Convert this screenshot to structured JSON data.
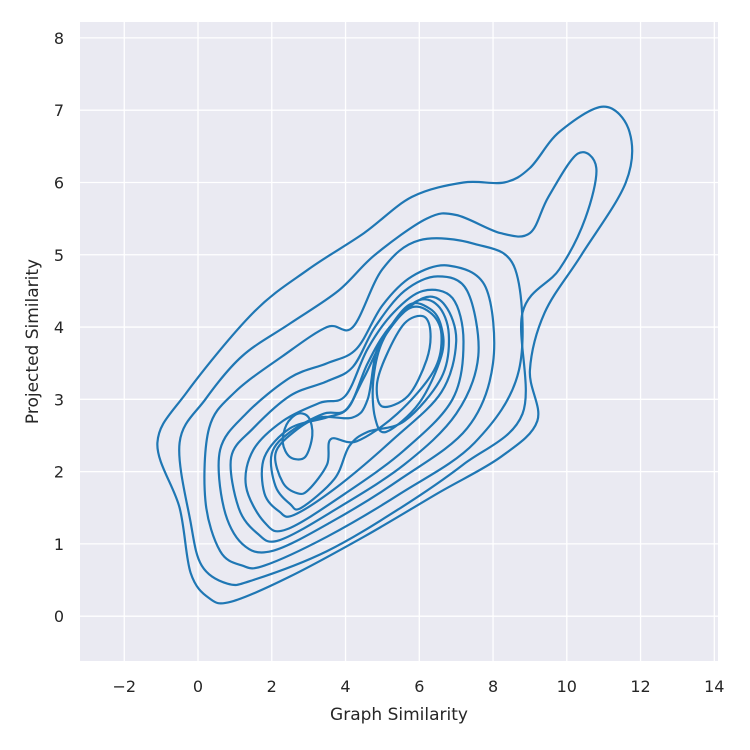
{
  "chart_data": {
    "type": "kde-contour",
    "xlabel": "Graph Similarity",
    "ylabel": "Projected Similarity",
    "xlim": [
      -3.2,
      14.1
    ],
    "ylim": [
      -0.62,
      8.22
    ],
    "xticks": [
      -2,
      0,
      2,
      4,
      6,
      8,
      10,
      12,
      14
    ],
    "xtick_labels": [
      "−2",
      "0",
      "2",
      "4",
      "6",
      "8",
      "10",
      "12",
      "14"
    ],
    "yticks": [
      0,
      1,
      2,
      3,
      4,
      5,
      6,
      7,
      8
    ],
    "ytick_labels": [
      "0",
      "1",
      "2",
      "3",
      "4",
      "5",
      "6",
      "7",
      "8"
    ],
    "grid": true,
    "background": "#eaeaf2",
    "grid_color": "#ffffff",
    "line_color": "#1f77b4",
    "contours": [
      {
        "level": 1,
        "points": [
          [
            0.9,
            0.2
          ],
          [
            2.5,
            0.55
          ],
          [
            4.5,
            1.1
          ],
          [
            6.5,
            1.7
          ],
          [
            8.2,
            2.2
          ],
          [
            9.2,
            2.7
          ],
          [
            9.0,
            3.4
          ],
          [
            9.4,
            4.2
          ],
          [
            10.4,
            5.0
          ],
          [
            11.6,
            6.0
          ],
          [
            11.7,
            6.7
          ],
          [
            11.0,
            7.05
          ],
          [
            9.8,
            6.7
          ],
          [
            9.0,
            6.2
          ],
          [
            8.3,
            6.0
          ],
          [
            7.2,
            6.0
          ],
          [
            5.8,
            5.8
          ],
          [
            4.5,
            5.3
          ],
          [
            3.0,
            4.8
          ],
          [
            1.5,
            4.2
          ],
          [
            -0.3,
            3.1
          ],
          [
            -1.1,
            2.4
          ],
          [
            -0.5,
            1.5
          ],
          [
            -0.2,
            0.6
          ],
          [
            0.3,
            0.25
          ]
        ]
      },
      {
        "level": 2,
        "points": [
          [
            1.5,
            0.5
          ],
          [
            3.5,
            0.9
          ],
          [
            5.5,
            1.5
          ],
          [
            7.2,
            2.1
          ],
          [
            8.8,
            2.8
          ],
          [
            8.8,
            4.2
          ],
          [
            9.8,
            4.8
          ],
          [
            10.5,
            5.5
          ],
          [
            10.8,
            6.2
          ],
          [
            10.3,
            6.4
          ],
          [
            9.5,
            5.8
          ],
          [
            9.0,
            5.3
          ],
          [
            8.2,
            5.3
          ],
          [
            7.0,
            5.55
          ],
          [
            6.2,
            5.5
          ],
          [
            4.8,
            5.0
          ],
          [
            3.8,
            4.5
          ],
          [
            2.5,
            4.05
          ],
          [
            1.2,
            3.6
          ],
          [
            0.2,
            3.0
          ],
          [
            -0.5,
            2.4
          ],
          [
            -0.2,
            1.3
          ],
          [
            0.1,
            0.7
          ],
          [
            0.8,
            0.45
          ]
        ]
      },
      {
        "level": 3,
        "points": [
          [
            1.8,
            0.7
          ],
          [
            3.5,
            1.1
          ],
          [
            5.5,
            1.7
          ],
          [
            7.5,
            2.4
          ],
          [
            8.7,
            3.4
          ],
          [
            8.6,
            4.8
          ],
          [
            7.5,
            5.15
          ],
          [
            6.0,
            5.2
          ],
          [
            5.0,
            4.8
          ],
          [
            4.2,
            4.0
          ],
          [
            3.5,
            4.0
          ],
          [
            2.3,
            3.6
          ],
          [
            1.0,
            3.1
          ],
          [
            0.3,
            2.6
          ],
          [
            0.2,
            1.6
          ],
          [
            0.6,
            0.9
          ],
          [
            1.2,
            0.7
          ]
        ]
      },
      {
        "level": 4,
        "points": [
          [
            2.0,
            0.9
          ],
          [
            3.6,
            1.3
          ],
          [
            5.5,
            1.9
          ],
          [
            7.3,
            2.6
          ],
          [
            8.0,
            3.5
          ],
          [
            7.8,
            4.55
          ],
          [
            6.8,
            4.85
          ],
          [
            5.8,
            4.7
          ],
          [
            5.0,
            4.3
          ],
          [
            4.3,
            3.7
          ],
          [
            3.5,
            3.5
          ],
          [
            2.5,
            3.3
          ],
          [
            1.3,
            2.8
          ],
          [
            0.6,
            2.3
          ],
          [
            0.7,
            1.5
          ],
          [
            1.2,
            1.0
          ]
        ]
      },
      {
        "level": 5,
        "points": [
          [
            2.2,
            1.05
          ],
          [
            3.8,
            1.5
          ],
          [
            5.6,
            2.1
          ],
          [
            7.0,
            2.8
          ],
          [
            7.6,
            3.6
          ],
          [
            7.3,
            4.5
          ],
          [
            6.5,
            4.7
          ],
          [
            5.6,
            4.5
          ],
          [
            4.8,
            4.0
          ],
          [
            4.2,
            3.45
          ],
          [
            3.5,
            3.25
          ],
          [
            2.5,
            3.05
          ],
          [
            1.5,
            2.6
          ],
          [
            0.9,
            2.2
          ],
          [
            1.1,
            1.5
          ],
          [
            1.6,
            1.15
          ]
        ]
      },
      {
        "level": 6,
        "points": [
          [
            2.4,
            1.2
          ],
          [
            4.0,
            1.7
          ],
          [
            5.6,
            2.3
          ],
          [
            6.9,
            3.0
          ],
          [
            7.2,
            3.8
          ],
          [
            6.9,
            4.4
          ],
          [
            6.1,
            4.5
          ],
          [
            5.3,
            4.2
          ],
          [
            4.6,
            3.7
          ],
          [
            4.0,
            3.05
          ],
          [
            3.3,
            2.95
          ],
          [
            2.3,
            2.7
          ],
          [
            1.5,
            2.3
          ],
          [
            1.3,
            1.8
          ],
          [
            1.8,
            1.3
          ]
        ]
      },
      {
        "level": 7,
        "points": [
          [
            2.6,
            1.4
          ],
          [
            3.8,
            1.8
          ],
          [
            5.3,
            2.45
          ],
          [
            6.6,
            3.1
          ],
          [
            7.0,
            3.8
          ],
          [
            6.7,
            4.3
          ],
          [
            6.1,
            4.4
          ],
          [
            5.2,
            4.0
          ],
          [
            4.6,
            3.5
          ],
          [
            4.1,
            2.9
          ],
          [
            3.5,
            2.75
          ],
          [
            2.5,
            2.6
          ],
          [
            1.8,
            2.2
          ],
          [
            1.8,
            1.7
          ],
          [
            2.2,
            1.45
          ]
        ]
      },
      {
        "level": 8,
        "points": [
          [
            2.8,
            1.5
          ],
          [
            3.7,
            1.9
          ],
          [
            4.1,
            2.35
          ],
          [
            4.6,
            2.55
          ],
          [
            5.6,
            2.7
          ],
          [
            6.6,
            3.3
          ],
          [
            6.8,
            3.9
          ],
          [
            6.5,
            4.3
          ],
          [
            5.9,
            4.35
          ],
          [
            5.1,
            3.9
          ],
          [
            4.5,
            3.3
          ],
          [
            4.0,
            2.85
          ],
          [
            3.4,
            2.8
          ],
          [
            2.5,
            2.55
          ],
          [
            2.0,
            2.25
          ],
          [
            2.1,
            1.8
          ],
          [
            2.5,
            1.55
          ]
        ]
      },
      {
        "level": 9,
        "points": [
          [
            3.0,
            1.75
          ],
          [
            3.5,
            2.1
          ],
          [
            3.6,
            2.45
          ],
          [
            4.3,
            2.42
          ],
          [
            5.4,
            2.8
          ],
          [
            6.4,
            3.4
          ],
          [
            6.6,
            3.9
          ],
          [
            6.3,
            4.2
          ],
          [
            5.7,
            4.25
          ],
          [
            4.9,
            3.75
          ],
          [
            4.6,
            3.0
          ],
          [
            4.2,
            2.75
          ],
          [
            3.3,
            2.75
          ],
          [
            2.6,
            2.55
          ],
          [
            2.1,
            2.25
          ],
          [
            2.3,
            1.85
          ],
          [
            2.7,
            1.7
          ]
        ]
      },
      {
        "level": 10,
        "points": [
          [
            5.1,
            2.55
          ],
          [
            6.0,
            2.95
          ],
          [
            6.6,
            3.6
          ],
          [
            6.6,
            4.0
          ],
          [
            6.3,
            4.25
          ],
          [
            5.7,
            4.3
          ],
          [
            5.0,
            3.8
          ],
          [
            4.75,
            3.25
          ],
          [
            4.8,
            2.75
          ]
        ]
      },
      {
        "level": 11,
        "points": [
          [
            5.0,
            2.9
          ],
          [
            5.7,
            3.05
          ],
          [
            6.2,
            3.55
          ],
          [
            6.3,
            3.95
          ],
          [
            6.1,
            4.15
          ],
          [
            5.6,
            4.05
          ],
          [
            5.1,
            3.6
          ],
          [
            4.85,
            3.2
          ]
        ]
      },
      {
        "level": 12,
        "points": [
          [
            2.5,
            2.2
          ],
          [
            2.9,
            2.2
          ],
          [
            3.1,
            2.5
          ],
          [
            3.0,
            2.75
          ],
          [
            2.7,
            2.8
          ],
          [
            2.4,
            2.65
          ],
          [
            2.3,
            2.4
          ]
        ]
      }
    ]
  }
}
